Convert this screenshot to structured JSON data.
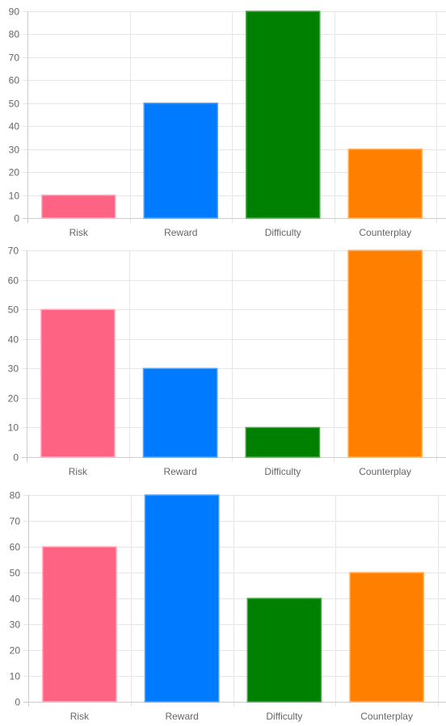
{
  "colors": {
    "series": [
      "#ff6384",
      "#007bff",
      "#008000",
      "#ff8000"
    ],
    "border": [
      "#ffb1c1",
      "#4da3ff",
      "#4da64d",
      "#ffb366"
    ],
    "grid": "#e6e6e6",
    "tick_text": "#666666"
  },
  "chart_data": [
    {
      "type": "bar",
      "categories": [
        "Risk",
        "Reward",
        "Difficulty",
        "Counterplay"
      ],
      "values": [
        10,
        50,
        90,
        30
      ],
      "ylim": [
        0,
        90
      ],
      "yticks": [
        0,
        10,
        20,
        30,
        40,
        50,
        60,
        70,
        80,
        90
      ],
      "grid": true,
      "legend": "none"
    },
    {
      "type": "bar",
      "categories": [
        "Risk",
        "Reward",
        "Difficulty",
        "Counterplay"
      ],
      "values": [
        50,
        30,
        10,
        70
      ],
      "ylim": [
        0,
        70
      ],
      "yticks": [
        0,
        10,
        20,
        30,
        40,
        50,
        60,
        70
      ],
      "grid": true,
      "legend": "none"
    },
    {
      "type": "bar",
      "categories": [
        "Risk",
        "Reward",
        "Difficulty",
        "Counterplay"
      ],
      "values": [
        60,
        80,
        40,
        50
      ],
      "ylim": [
        0,
        80
      ],
      "yticks": [
        0,
        10,
        20,
        30,
        40,
        50,
        60,
        70,
        80
      ],
      "grid": true,
      "legend": "none"
    }
  ]
}
